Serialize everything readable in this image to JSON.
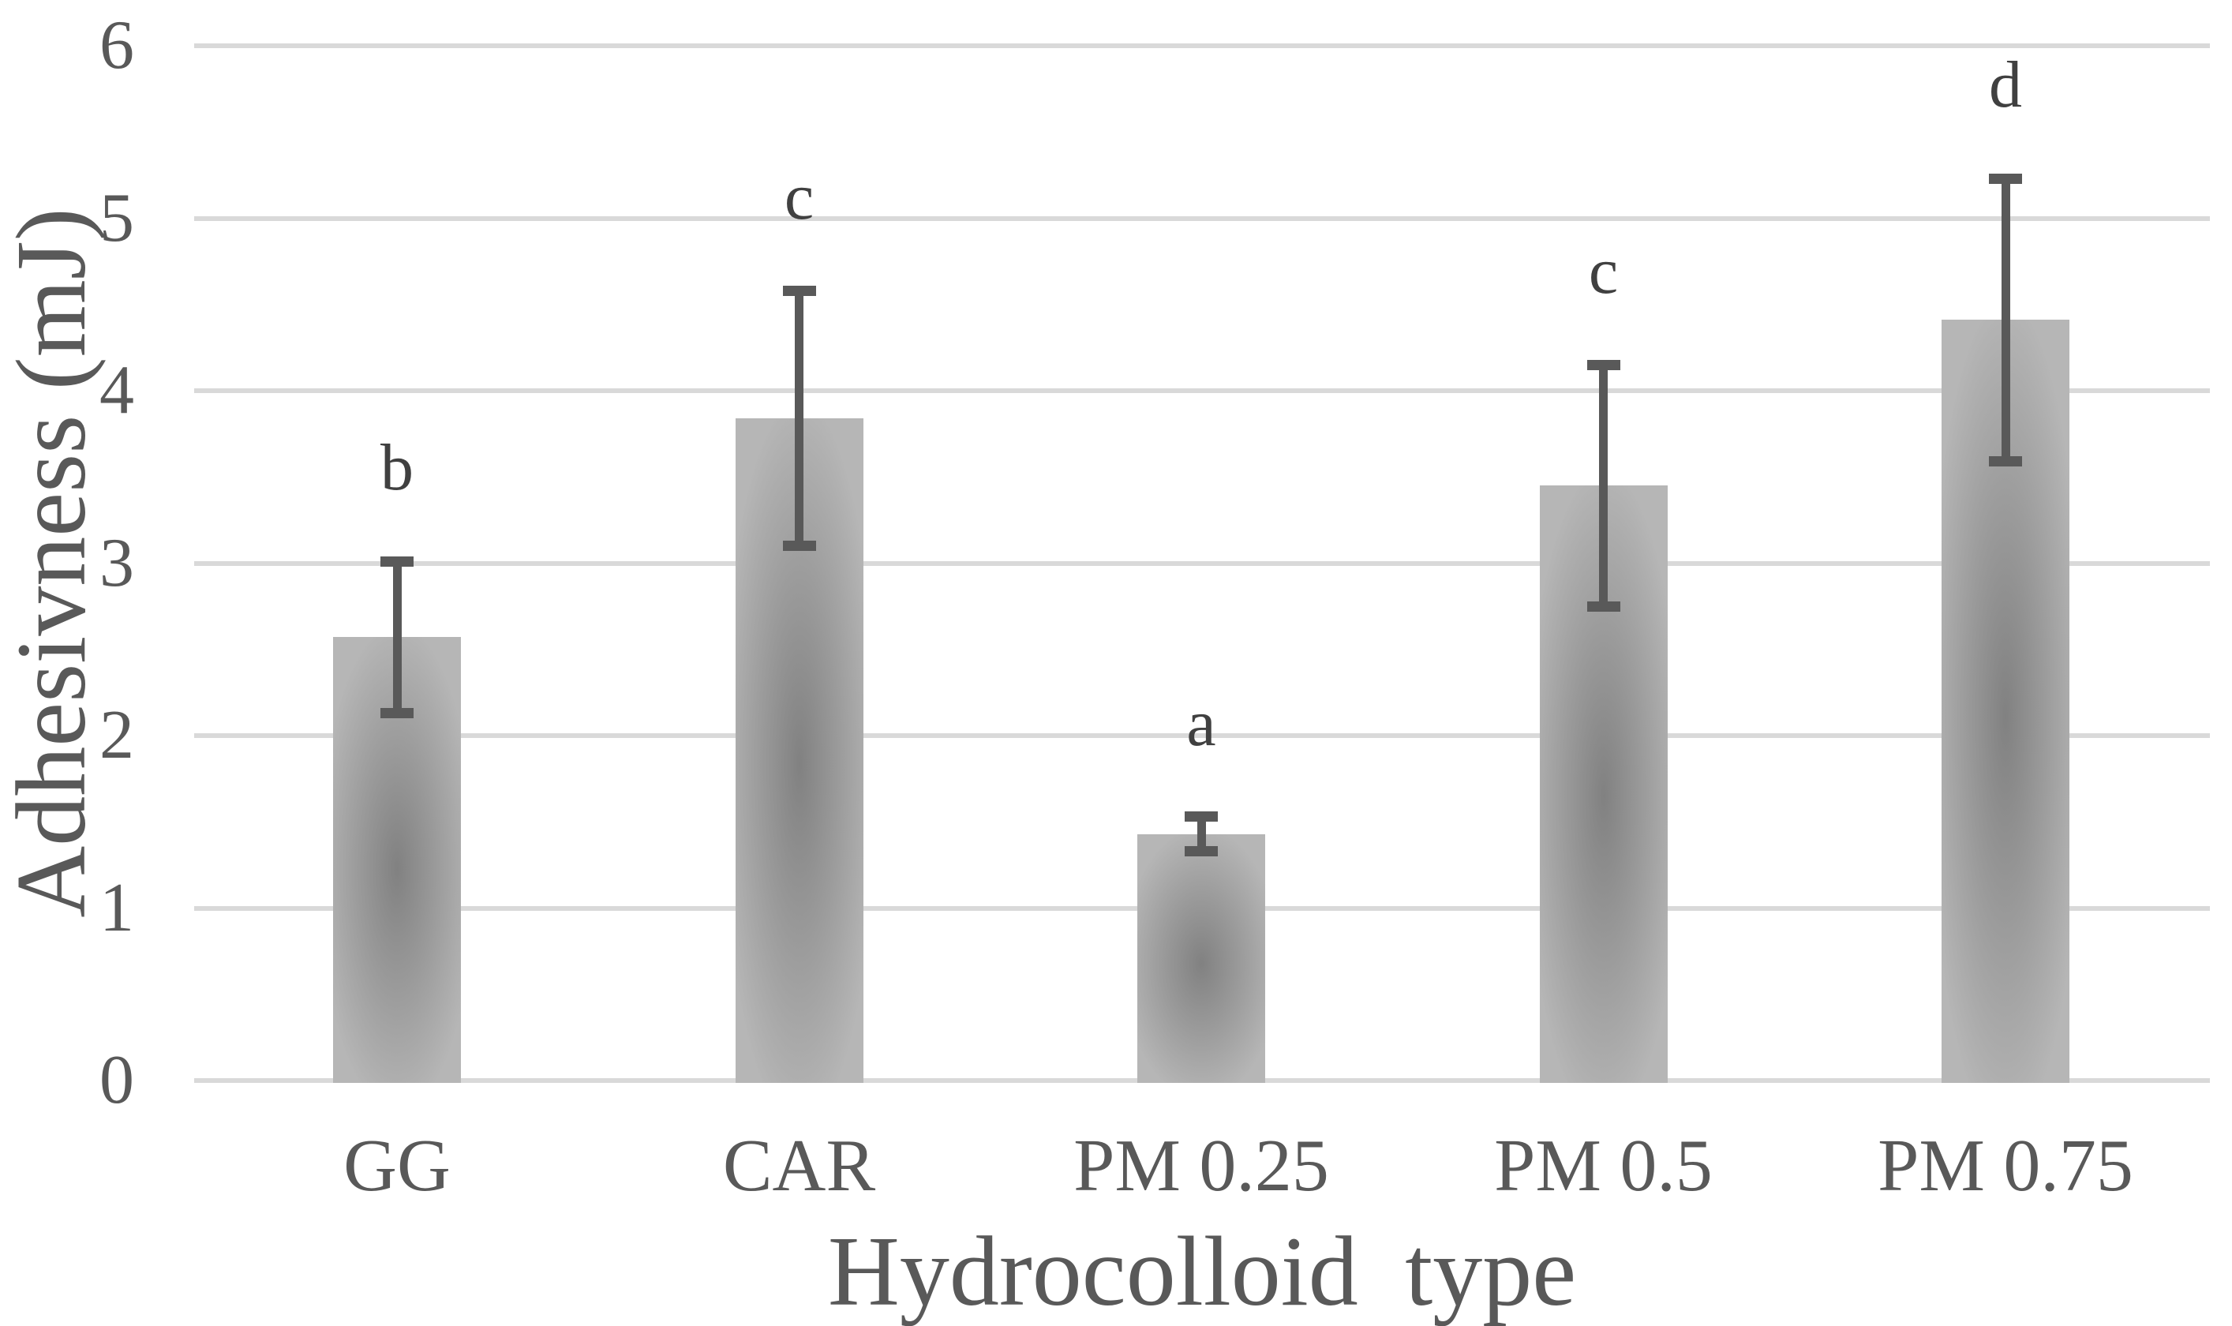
{
  "chart_data": {
    "type": "bar",
    "title": "",
    "xlabel": "Hydrocolloid type",
    "ylabel": "Adhesivness (mJ)",
    "categories": [
      "GG",
      "CAR",
      "PM 0.25",
      "PM 0.5",
      "PM 0.75"
    ],
    "values": [
      2.57,
      3.84,
      1.43,
      3.45,
      4.41
    ],
    "error_bars": [
      0.44,
      0.74,
      0.1,
      0.7,
      0.82
    ],
    "significance_letters": [
      "b",
      "c",
      "a",
      "c",
      "d"
    ],
    "yticks": [
      0,
      1,
      2,
      3,
      4,
      5,
      6
    ],
    "ylim": [
      0,
      6
    ],
    "grid": true,
    "legend_position": "none",
    "colors": {
      "gridline": "#d9d9d9",
      "axis_text": "#595959",
      "significance_letter": "#404040",
      "error_bar": "#595959",
      "bar_gradient_center": "#818181",
      "bar_gradient_mid": "#9a9a9a",
      "bar_gradient_edge": "#b6b6b6",
      "background": "#ffffff"
    }
  }
}
